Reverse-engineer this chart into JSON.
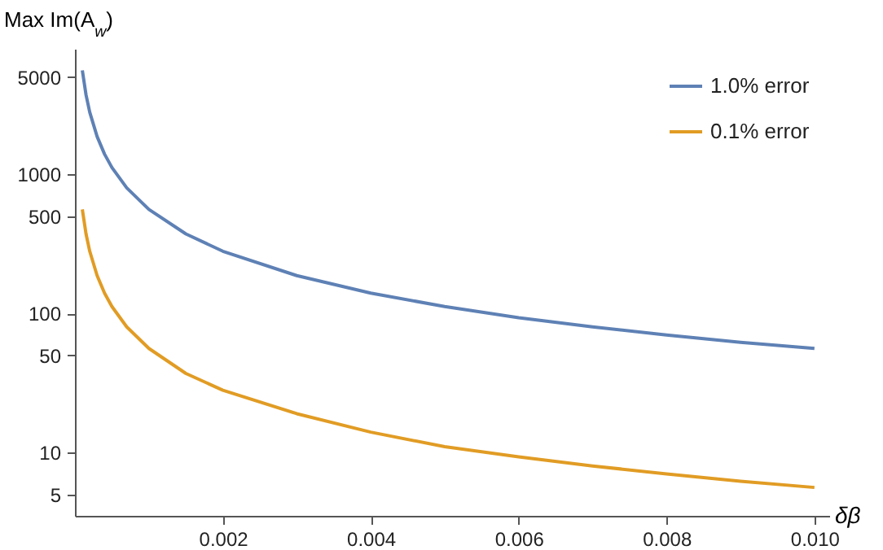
{
  "chart_data": {
    "type": "line",
    "xlabel": "δβ",
    "ylabel": "Max Im(A$_{w}$)",
    "log": "y",
    "legend": "top right",
    "grid": false,
    "marker": "none",
    "line_style": "solid",
    "x": [
      0.0001,
      0.00015,
      0.0002,
      0.0003,
      0.0004,
      0.0005,
      0.0007,
      0.001,
      0.0015,
      0.002,
      0.003,
      0.004,
      0.005,
      0.006,
      0.007,
      0.008,
      0.009,
      0.01
    ],
    "series": [
      {
        "name": "1.0% error",
        "color": "#5e81b5",
        "values": [
          5600,
          3730,
          2800,
          1870,
          1400,
          1120,
          800,
          560,
          373,
          280,
          187,
          140,
          112,
          93,
          80,
          70,
          62,
          56
        ]
      },
      {
        "name": "0.1% error",
        "color": "#e19c24",
        "values": [
          560,
          373,
          280,
          187,
          140,
          112,
          80,
          56,
          37,
          28,
          19,
          14,
          11,
          9.3,
          8,
          7,
          6.2,
          5.6
        ]
      }
    ],
    "xlim": [
      0,
      0.0102
    ],
    "ylim": [
      3.5,
      8000
    ],
    "xticks": [
      0.002,
      0.004,
      0.006,
      0.008,
      {
        "value": 0.01,
        "label": "0.010"
      }
    ],
    "yticks": [
      5,
      10,
      50,
      100,
      500,
      1000,
      5000
    ]
  }
}
